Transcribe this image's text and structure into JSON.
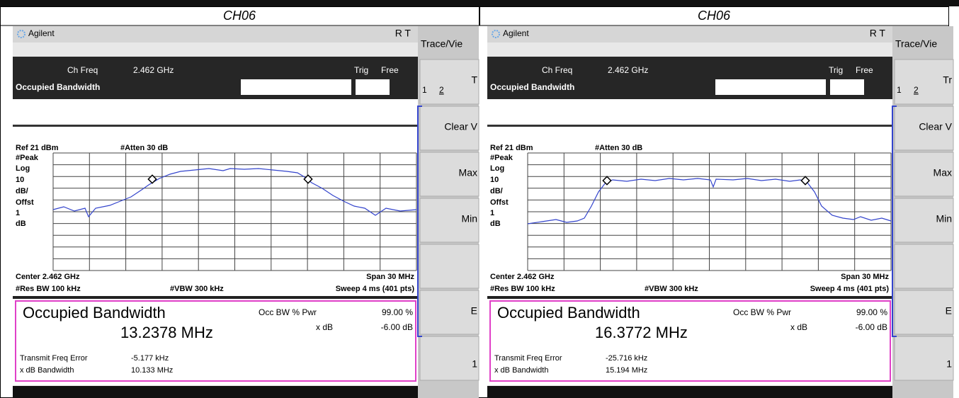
{
  "header": {
    "cells": [
      "CH06",
      "CH06"
    ]
  },
  "panels": [
    {
      "brand": "Agilent",
      "status": "R  T",
      "ch_freq_label": "Ch Freq",
      "ch_freq": "2.462 GHz",
      "trig_label": "Trig",
      "trig": "Free",
      "mode": "Occupied Bandwidth",
      "ref": "Ref 21 dBm",
      "atten": "#Atten 30 dB",
      "scale_labels": [
        "#Peak",
        "Log",
        "10",
        "dB/",
        "Offst",
        "1",
        "dB"
      ],
      "center": "Center 2.462 GHz",
      "span": "Span 30 MHz",
      "res_bw": "#Res BW 100 kHz",
      "vbw": "#VBW 300 kHz",
      "sweep": "Sweep 4 ms (401 pts)",
      "result_title": "Occupied Bandwidth",
      "occupied_bw": "13.2378 MHz",
      "occ_pwr_label": "Occ BW % Pwr",
      "occ_pwr": "99.00 %",
      "xdb_label": "x dB",
      "xdb": "-6.00 dB",
      "tfe_label": "Transmit Freq Error",
      "tfe": "-5.177 kHz",
      "xdb_bw_label": "x dB Bandwidth",
      "xdb_bw": "10.133 MHz",
      "softkey_title": "Trace/Vie",
      "key_numbers": [
        "1",
        "2"
      ],
      "keys": [
        "T",
        "Clear V",
        "Max",
        "Min",
        "E",
        "1"
      ]
    },
    {
      "brand": "Agilent",
      "status": "R  T",
      "ch_freq_label": "Ch Freq",
      "ch_freq": "2.462 GHz",
      "trig_label": "Trig",
      "trig": "Free",
      "mode": "Occupied Bandwidth",
      "ref": "Ref 21 dBm",
      "atten": "#Atten 30 dB",
      "scale_labels": [
        "#Peak",
        "Log",
        "10",
        "dB/",
        "Offst",
        "1",
        "dB"
      ],
      "center": "Center 2.462 GHz",
      "span": "Span 30 MHz",
      "res_bw": "#Res BW 100 kHz",
      "vbw": "#VBW 300 kHz",
      "sweep": "Sweep 4 ms (401 pts)",
      "result_title": "Occupied Bandwidth",
      "occupied_bw": "16.3772 MHz",
      "occ_pwr_label": "Occ BW % Pwr",
      "occ_pwr": "99.00 %",
      "xdb_label": "x dB",
      "xdb": "-6.00 dB",
      "tfe_label": "Transmit Freq Error",
      "tfe": "-25.716 kHz",
      "xdb_bw_label": "x dB Bandwidth",
      "xdb_bw": "15.194 MHz",
      "softkey_title": "Trace/Vie",
      "key_numbers": [
        "1",
        "2"
      ],
      "keys": [
        "Tr",
        "Clear V",
        "Max",
        "Min",
        "E",
        "1"
      ]
    }
  ]
}
